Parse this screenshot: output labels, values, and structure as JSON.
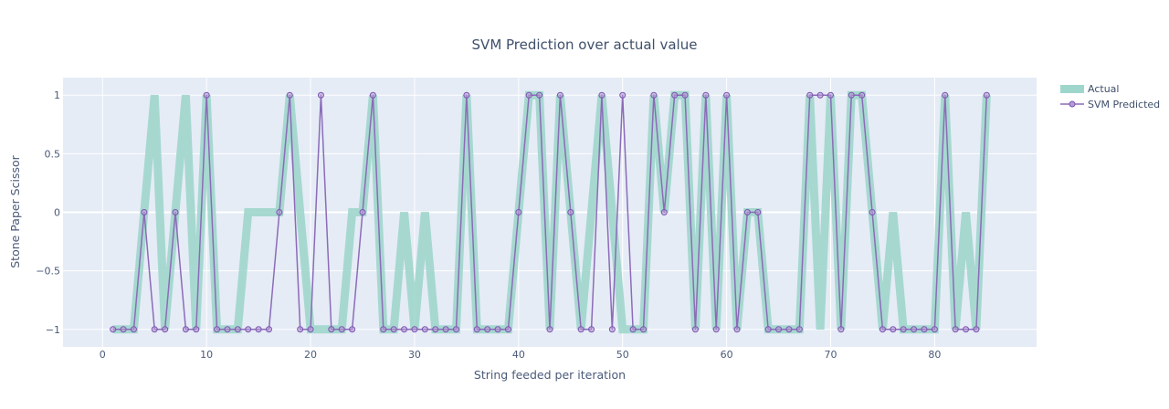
{
  "chart_data": {
    "type": "line",
    "title": "SVM Prediction over actual value",
    "xlabel": "String feeded per iteration",
    "ylabel": "Stone Paper Scissor",
    "xlim": [
      -3.8,
      89.8
    ],
    "ylim": [
      -1.15,
      1.15
    ],
    "x_ticks": [
      0,
      10,
      20,
      30,
      40,
      50,
      60,
      70,
      80
    ],
    "y_ticks": [
      -1,
      -0.5,
      0,
      0.5,
      1
    ],
    "y_tick_labels": [
      "−1",
      "−0.5",
      "0",
      "0.5",
      "1"
    ],
    "grid": true,
    "legend_position": "top-right",
    "x": [
      1,
      2,
      3,
      4,
      5,
      6,
      7,
      8,
      9,
      10,
      11,
      12,
      13,
      14,
      15,
      16,
      17,
      18,
      19,
      20,
      21,
      22,
      23,
      24,
      25,
      26,
      27,
      28,
      29,
      30,
      31,
      32,
      33,
      34,
      35,
      36,
      37,
      38,
      39,
      40,
      41,
      42,
      43,
      44,
      45,
      46,
      47,
      48,
      49,
      50,
      51,
      52,
      53,
      54,
      55,
      56,
      57,
      58,
      59,
      60,
      61,
      62,
      63,
      64,
      65,
      66,
      67,
      68,
      69,
      70,
      71,
      72,
      73,
      74,
      75,
      76,
      77,
      78,
      79,
      80,
      81,
      82,
      83,
      84,
      85
    ],
    "series": [
      {
        "name": "Actual",
        "color": "#9ed6cc",
        "values": [
          -1,
          -1,
          -1,
          0,
          1,
          -1,
          0,
          1,
          -1,
          1,
          -1,
          -1,
          -1,
          0,
          0,
          0,
          0,
          1,
          0,
          -1,
          -1,
          -1,
          -1,
          0,
          0,
          1,
          -1,
          -1,
          0,
          -1,
          0,
          -1,
          -1,
          -1,
          1,
          -1,
          -1,
          -1,
          -1,
          0,
          1,
          1,
          -1,
          1,
          0,
          -1,
          0,
          1,
          0,
          -1,
          -1,
          -1,
          1,
          0,
          1,
          1,
          -1,
          1,
          -1,
          1,
          -1,
          0,
          0,
          -1,
          -1,
          -1,
          -1,
          1,
          -1,
          1,
          -1,
          1,
          1,
          0,
          -1,
          0,
          -1,
          -1,
          -1,
          -1,
          1,
          -1,
          0,
          -1,
          1
        ]
      },
      {
        "name": "SVM Predicted",
        "color": "#8c6bb8",
        "values": [
          -1,
          -1,
          -1,
          0,
          -1,
          -1,
          0,
          -1,
          -1,
          1,
          -1,
          -1,
          -1,
          -1,
          -1,
          -1,
          0,
          1,
          -1,
          -1,
          1,
          -1,
          -1,
          -1,
          0,
          1,
          -1,
          -1,
          -1,
          -1,
          -1,
          -1,
          -1,
          -1,
          1,
          -1,
          -1,
          -1,
          -1,
          0,
          1,
          1,
          -1,
          1,
          0,
          -1,
          -1,
          1,
          -1,
          1,
          -1,
          -1,
          1,
          0,
          1,
          1,
          -1,
          1,
          -1,
          1,
          -1,
          0,
          0,
          -1,
          -1,
          -1,
          -1,
          1,
          1,
          1,
          -1,
          1,
          1,
          0,
          -1,
          -1,
          -1,
          -1,
          -1,
          -1,
          1,
          -1,
          -1,
          -1,
          1
        ]
      }
    ]
  }
}
